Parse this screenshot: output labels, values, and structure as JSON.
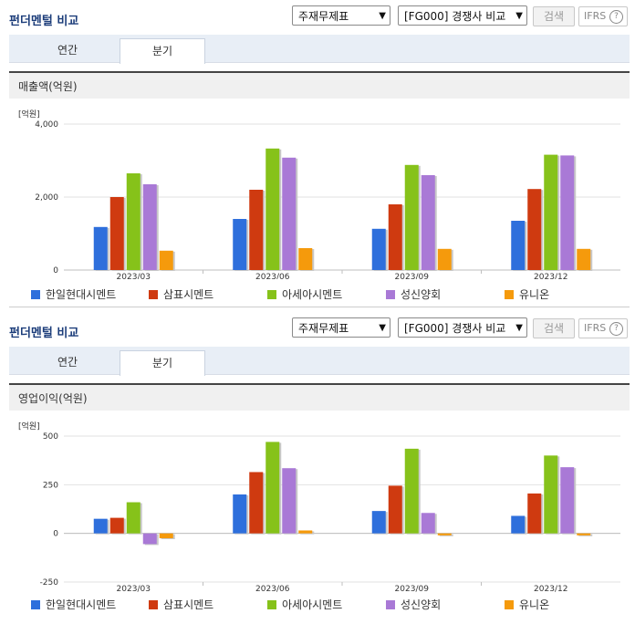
{
  "sections": [
    {
      "title": "펀더멘털 비교",
      "statement_select": "주재무제표",
      "compare_select": "[FG000] 경쟁사 비교",
      "search_label": "검색",
      "ifrs_label": "IFRS",
      "help_label": "?",
      "tabs": [
        {
          "label": "연간"
        },
        {
          "label": "분기"
        }
      ],
      "active_tab": "분기",
      "metric_label": "매출액(억원)",
      "unit_label": "[억원]"
    },
    {
      "title": "펀더멘털 비교",
      "statement_select": "주재무제표",
      "compare_select": "[FG000] 경쟁사 비교",
      "search_label": "검색",
      "ifrs_label": "IFRS",
      "help_label": "?",
      "tabs": [
        {
          "label": "연간"
        },
        {
          "label": "분기"
        }
      ],
      "active_tab": "분기",
      "metric_label": "영업이익(억원)",
      "unit_label": "[억원]"
    }
  ],
  "colors": {
    "한일현대시멘트": "#2e6fdc",
    "삼표시멘트": "#cf3a10",
    "아세아시멘트": "#86c21a",
    "성신양회": "#a979d6",
    "유니온": "#f59a0c"
  },
  "chart_data": [
    {
      "type": "bar",
      "categories": [
        "2023/03",
        "2023/06",
        "2023/09",
        "2023/12"
      ],
      "ylim": [
        0,
        4000
      ],
      "yticks": [
        "0",
        "2,000",
        "4,000"
      ],
      "ytick_values": [
        0,
        2000,
        4000
      ],
      "series": [
        {
          "name": "한일현대시멘트",
          "values": [
            1180,
            1400,
            1130,
            1350
          ]
        },
        {
          "name": "삼표시멘트",
          "values": [
            2000,
            2200,
            1800,
            2220
          ]
        },
        {
          "name": "아세아시멘트",
          "values": [
            2650,
            3330,
            2880,
            3160
          ]
        },
        {
          "name": "성신양회",
          "values": [
            2350,
            3080,
            2600,
            3140
          ]
        },
        {
          "name": "유니온",
          "values": [
            530,
            600,
            580,
            580
          ]
        }
      ]
    },
    {
      "type": "bar",
      "categories": [
        "2023/03",
        "2023/06",
        "2023/09",
        "2023/12"
      ],
      "ylim": [
        -250,
        500
      ],
      "yticks": [
        "-250",
        "0",
        "250",
        "500"
      ],
      "ytick_values": [
        -250,
        0,
        250,
        500
      ],
      "series": [
        {
          "name": "한일현대시멘트",
          "values": [
            75,
            200,
            115,
            90
          ]
        },
        {
          "name": "삼표시멘트",
          "values": [
            80,
            315,
            245,
            205
          ]
        },
        {
          "name": "아세아시멘트",
          "values": [
            160,
            470,
            435,
            400
          ]
        },
        {
          "name": "성신양회",
          "values": [
            -55,
            335,
            105,
            340
          ]
        },
        {
          "name": "유니온",
          "values": [
            -25,
            15,
            -10,
            -10
          ]
        }
      ]
    }
  ]
}
